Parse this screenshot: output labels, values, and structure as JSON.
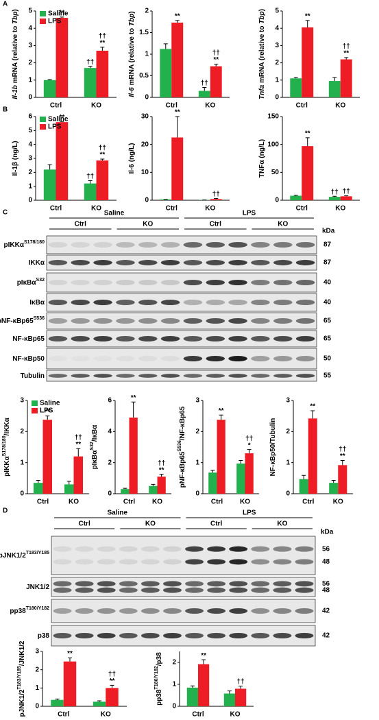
{
  "panels": [
    "A",
    "B",
    "C",
    "D"
  ],
  "chart_data": [
    {
      "type": "bar",
      "ylabel": [
        {
          "text": "Il-1b",
          "italic": true
        },
        {
          "text": " mRNA (relative to "
        },
        {
          "text": "Tbp",
          "italic": true
        },
        {
          "text": ")"
        }
      ],
      "categories": [
        "Ctrl",
        "KO"
      ],
      "ylim": [
        0,
        5
      ],
      "yticks": [
        0,
        1,
        2,
        3,
        4,
        5
      ],
      "legend": "upper left",
      "series": [
        {
          "name": "Saline",
          "color": "#22b14c",
          "values": [
            1.0,
            1.7
          ],
          "errors": [
            0.03,
            0.1
          ],
          "sig": [
            [],
            [
              "††"
            ]
          ]
        },
        {
          "name": "LPS",
          "color": "#ee1c25",
          "values": [
            4.6,
            2.7
          ],
          "errors": [
            0.05,
            0.2
          ],
          "sig": [
            [
              "**"
            ],
            [
              "††",
              "**"
            ]
          ]
        }
      ]
    },
    {
      "type": "bar",
      "ylabel": [
        {
          "text": "Il-6",
          "italic": true
        },
        {
          "text": " mRNA (relative to "
        },
        {
          "text": "Tbp",
          "italic": true
        },
        {
          "text": ")"
        }
      ],
      "categories": [
        "Ctrl",
        "KO"
      ],
      "ylim": [
        0,
        2
      ],
      "yticks": [
        0,
        0.5,
        1,
        1.5,
        2
      ],
      "series": [
        {
          "color": "#22b14c",
          "values": [
            1.12,
            0.15
          ],
          "errors": [
            0.12,
            0.08
          ],
          "sig": [
            [],
            [
              "††"
            ]
          ]
        },
        {
          "color": "#ee1c25",
          "values": [
            1.73,
            0.72
          ],
          "errors": [
            0.05,
            0.05
          ],
          "sig": [
            [
              "**"
            ],
            [
              "††",
              "**"
            ]
          ]
        }
      ]
    },
    {
      "type": "bar",
      "ylabel": [
        {
          "text": "Tnfa",
          "italic": true
        },
        {
          "text": " mRNA (relative to "
        },
        {
          "text": "Tbp",
          "italic": true
        },
        {
          "text": ")"
        }
      ],
      "categories": [
        "Ctrl",
        "KO"
      ],
      "ylim": [
        0,
        5
      ],
      "yticks": [
        0,
        1,
        2,
        3,
        4,
        5
      ],
      "series": [
        {
          "color": "#22b14c",
          "values": [
            1.1,
            0.95
          ],
          "errors": [
            0.05,
            0.2
          ],
          "sig": [
            [],
            []
          ]
        },
        {
          "color": "#ee1c25",
          "values": [
            4.05,
            2.2
          ],
          "errors": [
            0.4,
            0.1
          ],
          "sig": [
            [
              "**"
            ],
            [
              "††",
              "**"
            ]
          ]
        }
      ]
    },
    {
      "type": "bar",
      "ylabel": [
        {
          "text": "Il-1β (ng/L)"
        }
      ],
      "categories": [
        "Ctrl",
        "KO"
      ],
      "ylim": [
        0,
        6
      ],
      "yticks": [
        0,
        1,
        2,
        3,
        4,
        5,
        6
      ],
      "legend": "upper left",
      "series": [
        {
          "name": "Saline",
          "color": "#22b14c",
          "values": [
            2.2,
            1.2
          ],
          "errors": [
            0.35,
            0.2
          ],
          "sig": [
            [],
            [
              "††"
            ]
          ]
        },
        {
          "name": "LPS",
          "color": "#ee1c25",
          "values": [
            5.6,
            2.85
          ],
          "errors": [
            0.05,
            0.1
          ],
          "sig": [
            [
              "**"
            ],
            [
              "††",
              "**"
            ]
          ]
        }
      ]
    },
    {
      "type": "bar",
      "ylabel": [
        {
          "text": "Il-6 (ng/L)"
        }
      ],
      "categories": [
        "Ctrl",
        "KO"
      ],
      "ylim": [
        0,
        30
      ],
      "yticks": [
        0,
        10,
        20,
        30
      ],
      "series": [
        {
          "color": "#22b14c",
          "values": [
            0.3,
            0.1
          ],
          "errors": [
            0,
            0
          ],
          "sig": [
            [],
            []
          ]
        },
        {
          "color": "#ee1c25",
          "values": [
            22.5,
            0.4
          ],
          "errors": [
            7.5,
            0.2
          ],
          "sig": [
            [
              "**"
            ],
            [
              "††"
            ]
          ]
        }
      ]
    },
    {
      "type": "bar",
      "ylabel": [
        {
          "text": "TNFα (ng/L)"
        }
      ],
      "categories": [
        "Ctrl",
        "KO"
      ],
      "ylim": [
        0,
        150
      ],
      "yticks": [
        0,
        50,
        100,
        150
      ],
      "series": [
        {
          "color": "#22b14c",
          "values": [
            8,
            6
          ],
          "errors": [
            1,
            1
          ],
          "sig": [
            [],
            [
              "††"
            ]
          ]
        },
        {
          "color": "#ee1c25",
          "values": [
            97,
            7
          ],
          "errors": [
            15,
            1
          ],
          "sig": [
            [
              "**"
            ],
            [
              "††"
            ]
          ]
        }
      ]
    },
    {
      "type": "bar",
      "ylabel": [
        {
          "text": "pIKKα"
        },
        {
          "text": "S178/180",
          "sup": true
        },
        {
          "text": "/IKKα"
        }
      ],
      "categories": [
        "Ctrl",
        "KO"
      ],
      "ylim": [
        0,
        3
      ],
      "yticks": [
        0,
        1,
        2,
        3
      ],
      "legend": "upper left",
      "series": [
        {
          "name": "Saline",
          "color": "#22b14c",
          "values": [
            0.35,
            0.3
          ],
          "errors": [
            0.08,
            0.1
          ],
          "sig": [
            [],
            []
          ]
        },
        {
          "name": "LPS",
          "color": "#ee1c25",
          "values": [
            2.38,
            1.2
          ],
          "errors": [
            0.12,
            0.25
          ],
          "sig": [
            [
              "**"
            ],
            [
              "††",
              "**"
            ]
          ]
        }
      ]
    },
    {
      "type": "bar",
      "ylabel": [
        {
          "text": "pIκBα"
        },
        {
          "text": "S32",
          "sup": true
        },
        {
          "text": "/IκBα"
        }
      ],
      "categories": [
        "Ctrl",
        "KO"
      ],
      "ylim": [
        0,
        6
      ],
      "yticks": [
        0,
        2,
        4,
        6
      ],
      "series": [
        {
          "color": "#22b14c",
          "values": [
            0.3,
            0.5
          ],
          "errors": [
            0.05,
            0.1
          ],
          "sig": [
            [],
            []
          ]
        },
        {
          "color": "#ee1c25",
          "values": [
            4.9,
            1.1
          ],
          "errors": [
            1.0,
            0.15
          ],
          "sig": [
            [
              "**"
            ],
            [
              "††",
              "**"
            ]
          ]
        }
      ]
    },
    {
      "type": "bar",
      "ylabel": [
        {
          "text": "pNF-κBp65"
        },
        {
          "text": "S536",
          "sup": true
        },
        {
          "text": "/NF-κBp65"
        }
      ],
      "categories": [
        "Ctrl",
        "KO"
      ],
      "ylim": [
        0,
        3
      ],
      "yticks": [
        0,
        1,
        2,
        3
      ],
      "series": [
        {
          "color": "#22b14c",
          "values": [
            0.68,
            0.97
          ],
          "errors": [
            0.07,
            0.1
          ],
          "sig": [
            [],
            []
          ]
        },
        {
          "color": "#ee1c25",
          "values": [
            2.38,
            1.3
          ],
          "errors": [
            0.15,
            0.12
          ],
          "sig": [
            [
              "**"
            ],
            [
              "††",
              "*"
            ]
          ]
        }
      ]
    },
    {
      "type": "bar",
      "ylabel": [
        {
          "text": "NF-κBp50/Tubulin"
        }
      ],
      "categories": [
        "Ctrl",
        "KO"
      ],
      "ylim": [
        0,
        3
      ],
      "yticks": [
        0,
        1,
        2,
        3
      ],
      "series": [
        {
          "color": "#22b14c",
          "values": [
            0.47,
            0.35
          ],
          "errors": [
            0.12,
            0.08
          ],
          "sig": [
            [],
            []
          ]
        },
        {
          "color": "#ee1c25",
          "values": [
            2.42,
            0.92
          ],
          "errors": [
            0.25,
            0.15
          ],
          "sig": [
            [
              "**"
            ],
            [
              "††",
              "**"
            ]
          ]
        }
      ]
    },
    {
      "type": "bar",
      "ylabel": [
        {
          "text": "pJNK1/2"
        },
        {
          "text": "T183/Y185",
          "sup": true
        },
        {
          "text": "/JNK1/2"
        }
      ],
      "categories": [
        "Ctrl",
        "KO"
      ],
      "ylim": [
        0,
        3
      ],
      "yticks": [
        0,
        1,
        2,
        3
      ],
      "series": [
        {
          "color": "#22b14c",
          "values": [
            0.35,
            0.25
          ],
          "errors": [
            0.05,
            0.05
          ],
          "sig": [
            [],
            []
          ]
        },
        {
          "color": "#ee1c25",
          "values": [
            2.45,
            1.0
          ],
          "errors": [
            0.2,
            0.15
          ],
          "sig": [
            [
              "**"
            ],
            [
              "††",
              "**"
            ]
          ]
        }
      ]
    },
    {
      "type": "bar",
      "ylabel": [
        {
          "text": "pp38"
        },
        {
          "text": "T180/Y182",
          "sup": true
        },
        {
          "text": "/p38"
        }
      ],
      "categories": [
        "Ctrl",
        "KO"
      ],
      "ylim": [
        0,
        2.5
      ],
      "yticks": [
        0,
        1,
        2
      ],
      "series": [
        {
          "color": "#22b14c",
          "values": [
            0.85,
            0.58
          ],
          "errors": [
            0.08,
            0.12
          ],
          "sig": [
            [],
            []
          ]
        },
        {
          "color": "#ee1c25",
          "values": [
            1.92,
            0.8
          ],
          "errors": [
            0.2,
            0.12
          ],
          "sig": [
            [
              "**"
            ],
            [
              "††"
            ]
          ]
        }
      ]
    }
  ],
  "blots": [
    {
      "groups": [
        {
          "name": "Saline",
          "subgroups": [
            "Ctrl",
            "KO"
          ]
        },
        {
          "name": "LPS",
          "subgroups": [
            "Ctrl",
            "KO"
          ]
        }
      ],
      "unit": "kDa",
      "rows": [
        {
          "label": [
            {
              "text": "pIKKα"
            },
            {
              "text": "S178/180",
              "sup": true
            }
          ],
          "kda": [
            87
          ]
        },
        {
          "label": [
            {
              "text": "IKKα"
            }
          ],
          "kda": [
            87
          ]
        },
        {
          "label": [
            {
              "text": "pIκBα"
            },
            {
              "text": "S32",
              "sup": true
            }
          ],
          "kda": [
            40
          ]
        },
        {
          "label": [
            {
              "text": "IκBα"
            }
          ],
          "kda": [
            40
          ]
        },
        {
          "label": [
            {
              "text": "pNF-κBp65"
            },
            {
              "text": "S536",
              "sup": true
            }
          ],
          "kda": [
            65
          ]
        },
        {
          "label": [
            {
              "text": "NF-κBp65"
            }
          ],
          "kda": [
            65
          ]
        },
        {
          "label": [
            {
              "text": "NF-κBp50"
            }
          ],
          "kda": [
            50
          ]
        },
        {
          "label": [
            {
              "text": "Tubulin"
            }
          ],
          "kda": [
            55
          ]
        }
      ]
    },
    {
      "groups": [
        {
          "name": "Saline",
          "subgroups": [
            "Ctrl",
            "KO"
          ]
        },
        {
          "name": "LPS",
          "subgroups": [
            "Ctrl",
            "KO"
          ]
        }
      ],
      "unit": "kDa",
      "rows": [
        {
          "label": [
            {
              "text": "pJNK1/2"
            },
            {
              "text": "T183/Y185",
              "sup": true
            }
          ],
          "kda": [
            56,
            48
          ]
        },
        {
          "label": [
            {
              "text": "JNK1/2"
            }
          ],
          "kda": [
            56,
            48
          ]
        },
        {
          "label": [
            {
              "text": "pp38"
            },
            {
              "text": "T180/Y182",
              "sup": true
            }
          ],
          "kda": [
            42
          ]
        },
        {
          "label": [
            {
              "text": "p38"
            }
          ],
          "kda": [
            42
          ]
        }
      ]
    }
  ]
}
